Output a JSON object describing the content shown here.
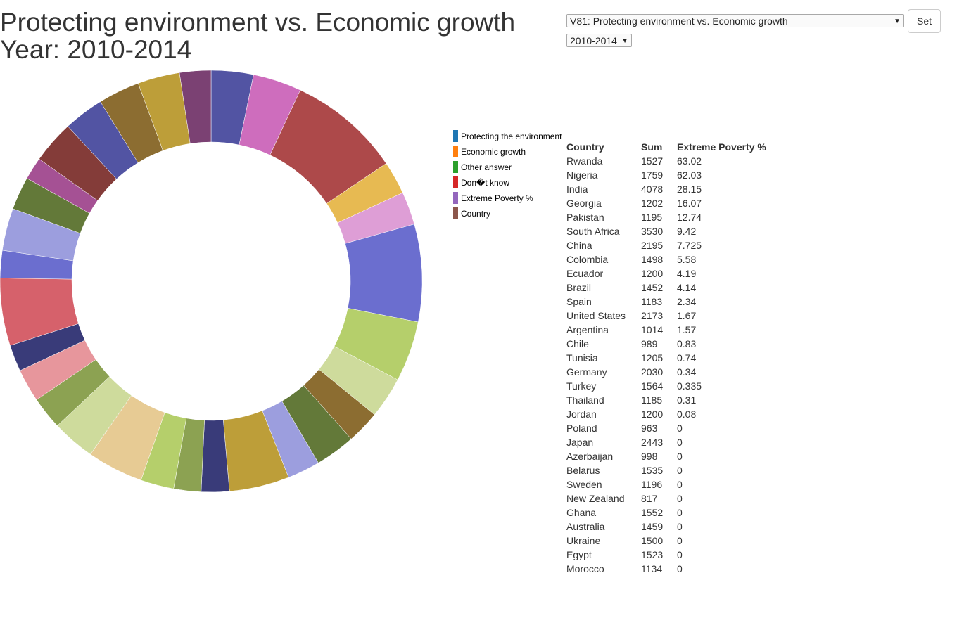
{
  "page": {
    "title_line1": "Protecting environment vs. Economic growth",
    "title_line2": "Year: 2010-2014"
  },
  "controls": {
    "question_select": "V81: Protecting environment vs. Economic growth",
    "year_select": "2010-2014",
    "set_button": "Set"
  },
  "legend": [
    {
      "label": "Protecting the environment",
      "color": "#1f77b4"
    },
    {
      "label": "Economic growth",
      "color": "#ff7f0e"
    },
    {
      "label": "Other answer",
      "color": "#2ca02c"
    },
    {
      "label": "Don�t know",
      "color": "#d62728"
    },
    {
      "label": "Extreme Poverty %",
      "color": "#9467bd"
    },
    {
      "label": "Country",
      "color": "#8c564b"
    }
  ],
  "table": {
    "headers": [
      "Country",
      "Sum",
      "Extreme Poverty %"
    ],
    "rows": [
      [
        "Rwanda",
        "1527",
        "63.02"
      ],
      [
        "Nigeria",
        "1759",
        "62.03"
      ],
      [
        "India",
        "4078",
        "28.15"
      ],
      [
        "Georgia",
        "1202",
        "16.07"
      ],
      [
        "Pakistan",
        "1195",
        "12.74"
      ],
      [
        "South Africa",
        "3530",
        "9.42"
      ],
      [
        "China",
        "2195",
        "7.725"
      ],
      [
        "Colombia",
        "1498",
        "5.58"
      ],
      [
        "Ecuador",
        "1200",
        "4.19"
      ],
      [
        "Brazil",
        "1452",
        "4.14"
      ],
      [
        "Spain",
        "1183",
        "2.34"
      ],
      [
        "United States",
        "2173",
        "1.67"
      ],
      [
        "Argentina",
        "1014",
        "1.57"
      ],
      [
        "Chile",
        "989",
        "0.83"
      ],
      [
        "Tunisia",
        "1205",
        "0.74"
      ],
      [
        "Germany",
        "2030",
        "0.34"
      ],
      [
        "Turkey",
        "1564",
        "0.335"
      ],
      [
        "Thailand",
        "1185",
        "0.31"
      ],
      [
        "Jordan",
        "1200",
        "0.08"
      ],
      [
        "Poland",
        "963",
        "0"
      ],
      [
        "Japan",
        "2443",
        "0"
      ],
      [
        "Azerbaijan",
        "998",
        "0"
      ],
      [
        "Belarus",
        "1535",
        "0"
      ],
      [
        "Sweden",
        "1196",
        "0"
      ],
      [
        "New Zealand",
        "817",
        "0"
      ],
      [
        "Ghana",
        "1552",
        "0"
      ],
      [
        "Australia",
        "1459",
        "0"
      ],
      [
        "Ukraine",
        "1500",
        "0"
      ],
      [
        "Egypt",
        "1523",
        "0"
      ],
      [
        "Morocco",
        "1134",
        "0"
      ]
    ]
  },
  "chart_data": {
    "type": "pie",
    "donut": true,
    "start_angle_deg": 0,
    "values": [
      1527,
      1759,
      4078,
      1202,
      1195,
      3530,
      2195,
      1498,
      1200,
      1452,
      1183,
      2173,
      1014,
      989,
      1205,
      2030,
      1564,
      1185,
      1200,
      963,
      2443,
      998,
      1535,
      1196,
      817,
      1552,
      1459,
      1500,
      1523,
      1134
    ],
    "colors": [
      "#5254a3",
      "#ce6dbd",
      "#ad494a",
      "#e7ba52",
      "#de9ed6",
      "#6b6ecf",
      "#b5cf6b",
      "#cedb9c",
      "#8c6d31",
      "#637939",
      "#9c9ede",
      "#bd9e39",
      "#393b79",
      "#8ca252",
      "#b5cf6b",
      "#e7cb94",
      "#cedb9c",
      "#8ca252",
      "#e7969c",
      "#393b79",
      "#d6616b",
      "#6b6ecf",
      "#9c9ede",
      "#637939",
      "#a55194",
      "#843c39",
      "#5254a3",
      "#8c6d31",
      "#bd9e39",
      "#7b4173"
    ]
  }
}
